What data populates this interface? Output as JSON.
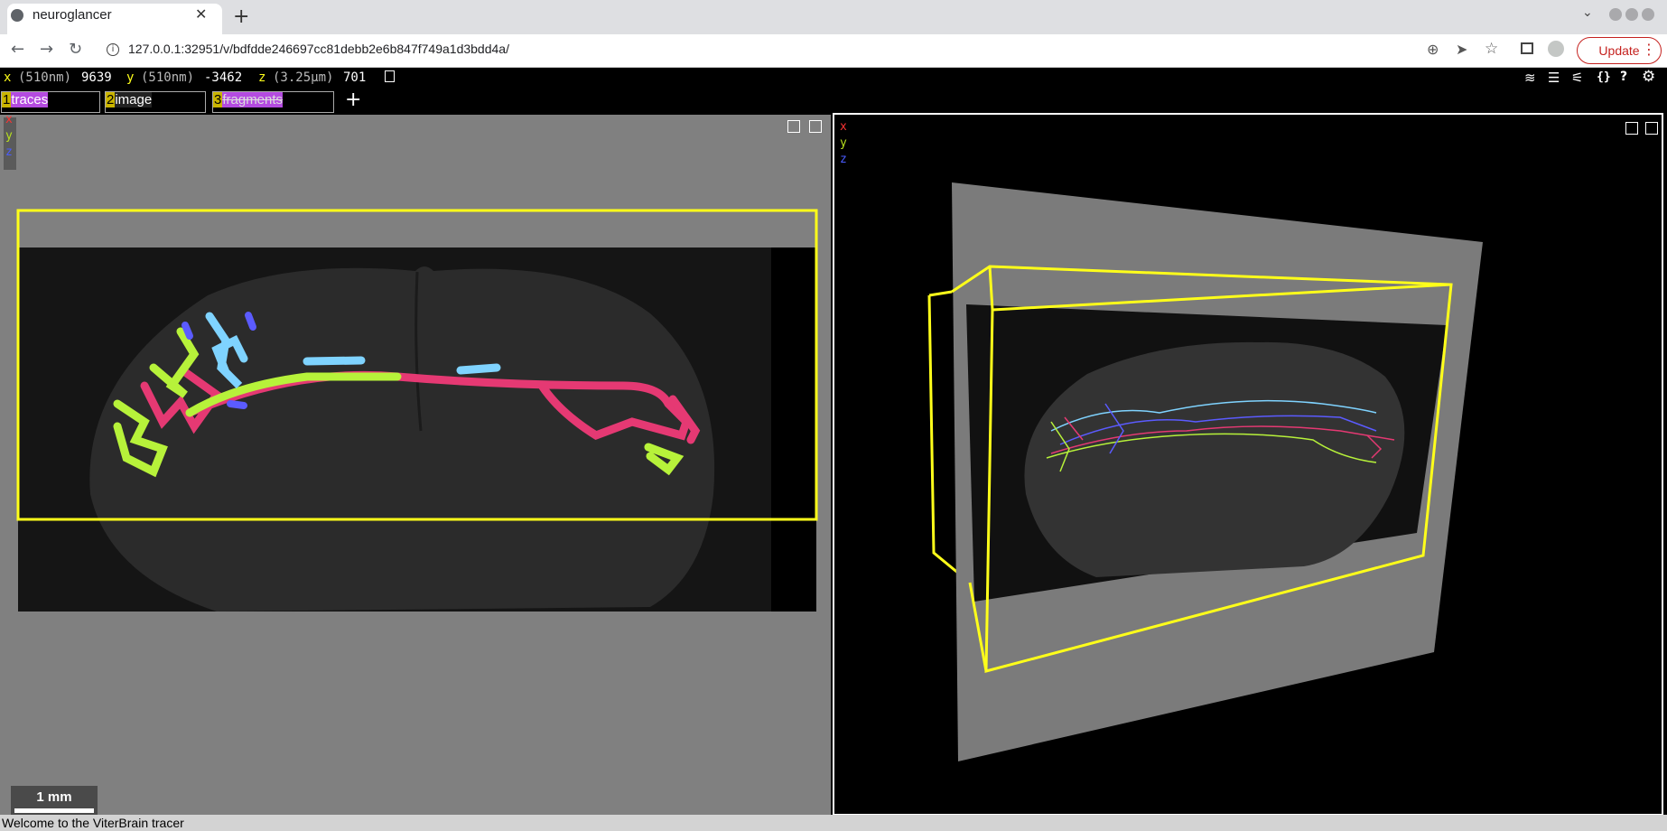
{
  "browser": {
    "tab_title": "neuroglancer",
    "url": "127.0.0.1:32951/v/bdfdde246697cc81debb2e6b847f749a1d3bdd4a/",
    "update_label": "Update"
  },
  "coords": {
    "x_label": "x",
    "x_unit": "(510nm)",
    "x_value": "9639",
    "y_label": "y",
    "y_unit": "(510nm)",
    "y_value": "-3462",
    "z_label": "z",
    "z_unit": "(3.25µm)",
    "z_value": "701"
  },
  "layers": [
    {
      "num": "1",
      "name": "traces"
    },
    {
      "num": "2",
      "name": "image"
    },
    {
      "num": "3",
      "name": "fragments"
    }
  ],
  "axes": {
    "x": "x",
    "y": "y",
    "z": "z"
  },
  "scale_bar": "1 mm",
  "status": "Welcome to the ViterBrain tracer",
  "colors": {
    "x_axis": "#ff3333",
    "y_axis": "#b8e01e",
    "z_axis": "#4a5cff",
    "bbox": "#ffff1a",
    "trace_pink": "#e53973",
    "trace_green": "#b7f23a",
    "trace_cyan": "#7fd3ff",
    "trace_blue": "#5b5bff"
  },
  "icons": [
    "info-icon",
    "zoom-icon",
    "send-icon",
    "star-icon",
    "sidepanel-icon",
    "profile-icon",
    "more-icon",
    "copy-icon",
    "layers-icon",
    "list-icon",
    "sliders-icon",
    "json-icon",
    "help-icon",
    "settings-icon"
  ]
}
